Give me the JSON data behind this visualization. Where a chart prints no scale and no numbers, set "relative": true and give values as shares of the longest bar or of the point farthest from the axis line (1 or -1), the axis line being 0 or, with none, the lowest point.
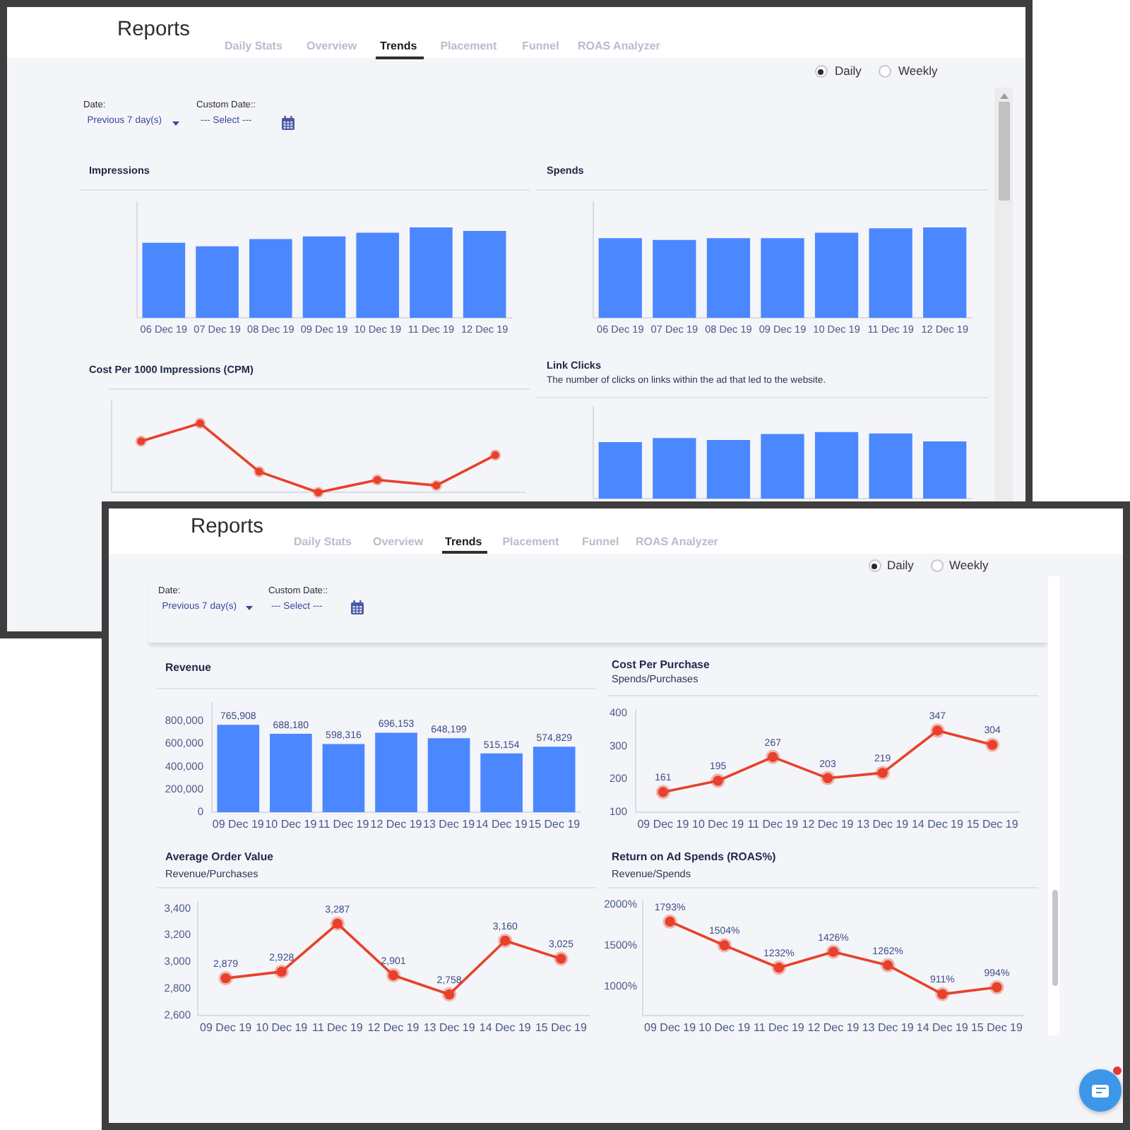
{
  "chart_data": [
    {
      "type": "other",
      "title": "Reports",
      "annotations": [
        "Daily Stats",
        "Overview",
        "Trends",
        "Placement",
        "Funnel",
        "ROAS Analyzer",
        "Daily",
        "Weekly",
        "Date:",
        "Previous 7 day(s)",
        "Custom Date::",
        "--- Select ---"
      ]
    },
    {
      "type": "bar",
      "title": "Impressions",
      "categories": [
        "06 Dec 19",
        "07 Dec 19",
        "08 Dec 19",
        "09 Dec 19",
        "10 Dec 19",
        "11 Dec 19",
        "12 Dec 19"
      ],
      "values": [
        0.83,
        0.79,
        0.87,
        0.9,
        0.94,
        1,
        0.96
      ],
      "color": "#4b87ff",
      "relative": true
    },
    {
      "type": "bar",
      "title": "Spends",
      "categories": [
        "06 Dec 19",
        "07 Dec 19",
        "08 Dec 19",
        "09 Dec 19",
        "10 Dec 19",
        "11 Dec 19",
        "12 Dec 19"
      ],
      "values": [
        0.88,
        0.86,
        0.88,
        0.88,
        0.94,
        0.99,
        1
      ],
      "color": "#4b87ff",
      "relative": true
    },
    {
      "type": "line",
      "title": "Cost Per 1000 Impressions (CPM)",
      "categories": [
        null,
        null,
        null,
        null,
        null,
        null,
        null
      ],
      "values": [
        0.74,
        1,
        0.3,
        0,
        0.18,
        0.1,
        0.54
      ],
      "color": "#e8412b",
      "relative": true,
      "marker": "circle"
    },
    {
      "type": "bar",
      "title": "Link Clicks",
      "subtitle": "The number of clicks on links within the ad that led to the website.",
      "categories": [
        null,
        null,
        null,
        null,
        null,
        null,
        null
      ],
      "values": [
        0.85,
        0.91,
        0.88,
        0.97,
        1,
        0.98,
        0.86
      ],
      "color": "#4b87ff",
      "relative": true
    },
    {
      "type": "other",
      "title": "Reports",
      "annotations": [
        "Daily Stats",
        "Overview",
        "Trends",
        "Placement",
        "Funnel",
        "ROAS Analyzer",
        "Daily",
        "Weekly",
        "Date:",
        "Previous 7 day(s)",
        "Custom Date::",
        "--- Select ---"
      ]
    },
    {
      "type": "bar",
      "title": "Revenue",
      "categories": [
        "09 Dec 19",
        "10 Dec 19",
        "11 Dec 19",
        "12 Dec 19",
        "13 Dec 19",
        "14 Dec 19",
        "15 Dec 19"
      ],
      "values": [
        765908,
        688180,
        598316,
        696153,
        648199,
        515154,
        574829
      ],
      "color": "#4b87ff",
      "ylim": [
        0,
        960000
      ],
      "yticks": [
        0,
        {
          "value": 200000,
          "label": "200,000"
        },
        {
          "value": 400000,
          "label": "400,000"
        },
        {
          "value": 600000,
          "label": "600,000"
        },
        {
          "value": 800000,
          "label": "800,000"
        }
      ],
      "value_labels": [
        "765,908",
        "688,180",
        "598,316",
        "696,153",
        "648,199",
        "515,154",
        "574,829"
      ]
    },
    {
      "type": "line",
      "title": "Cost Per Purchase",
      "subtitle": "Spends/Purchases",
      "categories": [
        "09 Dec 19",
        "10 Dec 19",
        "11 Dec 19",
        "12 Dec 19",
        "13 Dec 19",
        "14 Dec 19",
        "15 Dec 19"
      ],
      "values": [
        161,
        195,
        267,
        203,
        219,
        347,
        304
      ],
      "color": "#e8412b",
      "ylim": [
        100,
        410
      ],
      "yticks": [
        100,
        200,
        300,
        400
      ],
      "data_labels": true,
      "marker": "circle"
    },
    {
      "type": "line",
      "title": "Average Order Value",
      "subtitle": "Revenue/Purchases",
      "categories": [
        "09 Dec 19",
        "10 Dec 19",
        "11 Dec 19",
        "12 Dec 19",
        "13 Dec 19",
        "14 Dec 19",
        "15 Dec 19"
      ],
      "values": [
        2879,
        2928,
        3287,
        2901,
        2758,
        3160,
        3025
      ],
      "color": "#e8412b",
      "ylim": [
        2600,
        3450
      ],
      "yticks": [
        {
          "value": 2600,
          "label": "2,600"
        },
        {
          "value": 2800,
          "label": "2,800"
        },
        {
          "value": 3000,
          "label": "3,000"
        },
        {
          "value": 3200,
          "label": "3,200"
        },
        {
          "value": 3400,
          "label": "3,400"
        }
      ],
      "value_labels": [
        "2,879",
        "2,928",
        "3,287",
        "2,901",
        "2,758",
        "3,160",
        "3,025"
      ],
      "marker": "circle"
    },
    {
      "type": "line",
      "title": "Return on Ad Spends (ROAS%)",
      "subtitle": "Revenue/Spends",
      "categories": [
        "09 Dec 19",
        "10 Dec 19",
        "11 Dec 19",
        "12 Dec 19",
        "13 Dec 19",
        "14 Dec 19",
        "15 Dec 19"
      ],
      "values": [
        1793,
        1504,
        1232,
        1426,
        1262,
        911,
        994
      ],
      "color": "#e8412b",
      "ylim": [
        650,
        2050
      ],
      "yticks": [
        {
          "value": 1000,
          "label": "1000%"
        },
        {
          "value": 1500,
          "label": "1500%"
        },
        {
          "value": 2000,
          "label": "2000%"
        }
      ],
      "value_labels": [
        "1793%",
        "1504%",
        "1232%",
        "1426%",
        "1262%",
        "911%",
        "994%"
      ],
      "marker": "circle"
    }
  ]
}
